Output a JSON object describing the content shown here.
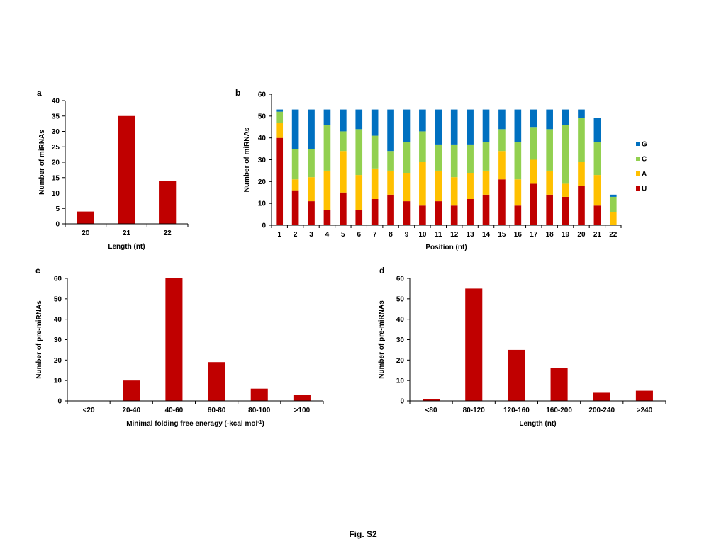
{
  "caption": "Fig. S2",
  "chart_data": [
    {
      "panel": "a",
      "type": "bar",
      "categories": [
        "20",
        "21",
        "22"
      ],
      "values": [
        4,
        35,
        14
      ],
      "xlabel": "Length (nt)",
      "ylabel": "Number of miRNAs",
      "ylim": [
        0,
        40
      ],
      "yticks": [
        0,
        5,
        10,
        15,
        20,
        25,
        30,
        35,
        40
      ],
      "color": "#c00000",
      "grid": false
    },
    {
      "panel": "b",
      "type": "bar",
      "stacked": true,
      "categories": [
        "1",
        "2",
        "3",
        "4",
        "5",
        "6",
        "7",
        "8",
        "9",
        "10",
        "11",
        "12",
        "13",
        "14",
        "15",
        "16",
        "17",
        "18",
        "19",
        "20",
        "21",
        "22"
      ],
      "series": [
        {
          "name": "U",
          "color": "#c00000",
          "values": [
            40,
            16,
            11,
            7,
            15,
            7,
            12,
            14,
            11,
            9,
            11,
            9,
            12,
            14,
            21,
            9,
            19,
            14,
            13,
            18,
            9,
            0
          ]
        },
        {
          "name": "A",
          "color": "#ffc000",
          "values": [
            7,
            5,
            11,
            18,
            19,
            16,
            14,
            11,
            13,
            20,
            14,
            13,
            12,
            11,
            13,
            12,
            11,
            11,
            6,
            11,
            14,
            6
          ]
        },
        {
          "name": "C",
          "color": "#92d050",
          "values": [
            5,
            14,
            13,
            21,
            9,
            21,
            15,
            9,
            14,
            14,
            12,
            15,
            13,
            13,
            10,
            17,
            15,
            19,
            27,
            20,
            15,
            7
          ]
        },
        {
          "name": "G",
          "color": "#0070c0",
          "values": [
            1,
            18,
            18,
            7,
            10,
            9,
            12,
            19,
            15,
            10,
            16,
            16,
            16,
            15,
            9,
            15,
            8,
            9,
            7,
            4,
            11,
            1
          ]
        }
      ],
      "legend_order": [
        "G",
        "C",
        "A",
        "U"
      ],
      "legend_position": "right",
      "xlabel": "Position (nt)",
      "ylabel": "Number of miRNAs",
      "ylim": [
        0,
        60
      ],
      "yticks": [
        0,
        10,
        20,
        30,
        40,
        50,
        60
      ],
      "grid": false
    },
    {
      "panel": "c",
      "type": "bar",
      "categories": [
        "<20",
        "20-40",
        "40-60",
        "60-80",
        "80-100",
        ">100"
      ],
      "values": [
        0,
        10,
        60,
        19,
        6,
        3
      ],
      "xlabel": "Minimal folding free eneragy (-kcal mol",
      "xlabel_superscript": "-1",
      "xlabel_suffix": ")",
      "ylabel": "Number of pre-miRNAs",
      "ylim": [
        0,
        60
      ],
      "yticks": [
        0,
        10,
        20,
        30,
        40,
        50,
        60
      ],
      "color": "#c00000",
      "grid": false
    },
    {
      "panel": "d",
      "type": "bar",
      "categories": [
        "<80",
        "80-120",
        "120-160",
        "160-200",
        "200-240",
        ">240"
      ],
      "values": [
        1,
        55,
        25,
        16,
        4,
        5
      ],
      "xlabel": "Length (nt)",
      "ylabel": "Number of pre-miRNAs",
      "ylim": [
        0,
        60
      ],
      "yticks": [
        0,
        10,
        20,
        30,
        40,
        50,
        60
      ],
      "color": "#c00000",
      "grid": false
    }
  ]
}
